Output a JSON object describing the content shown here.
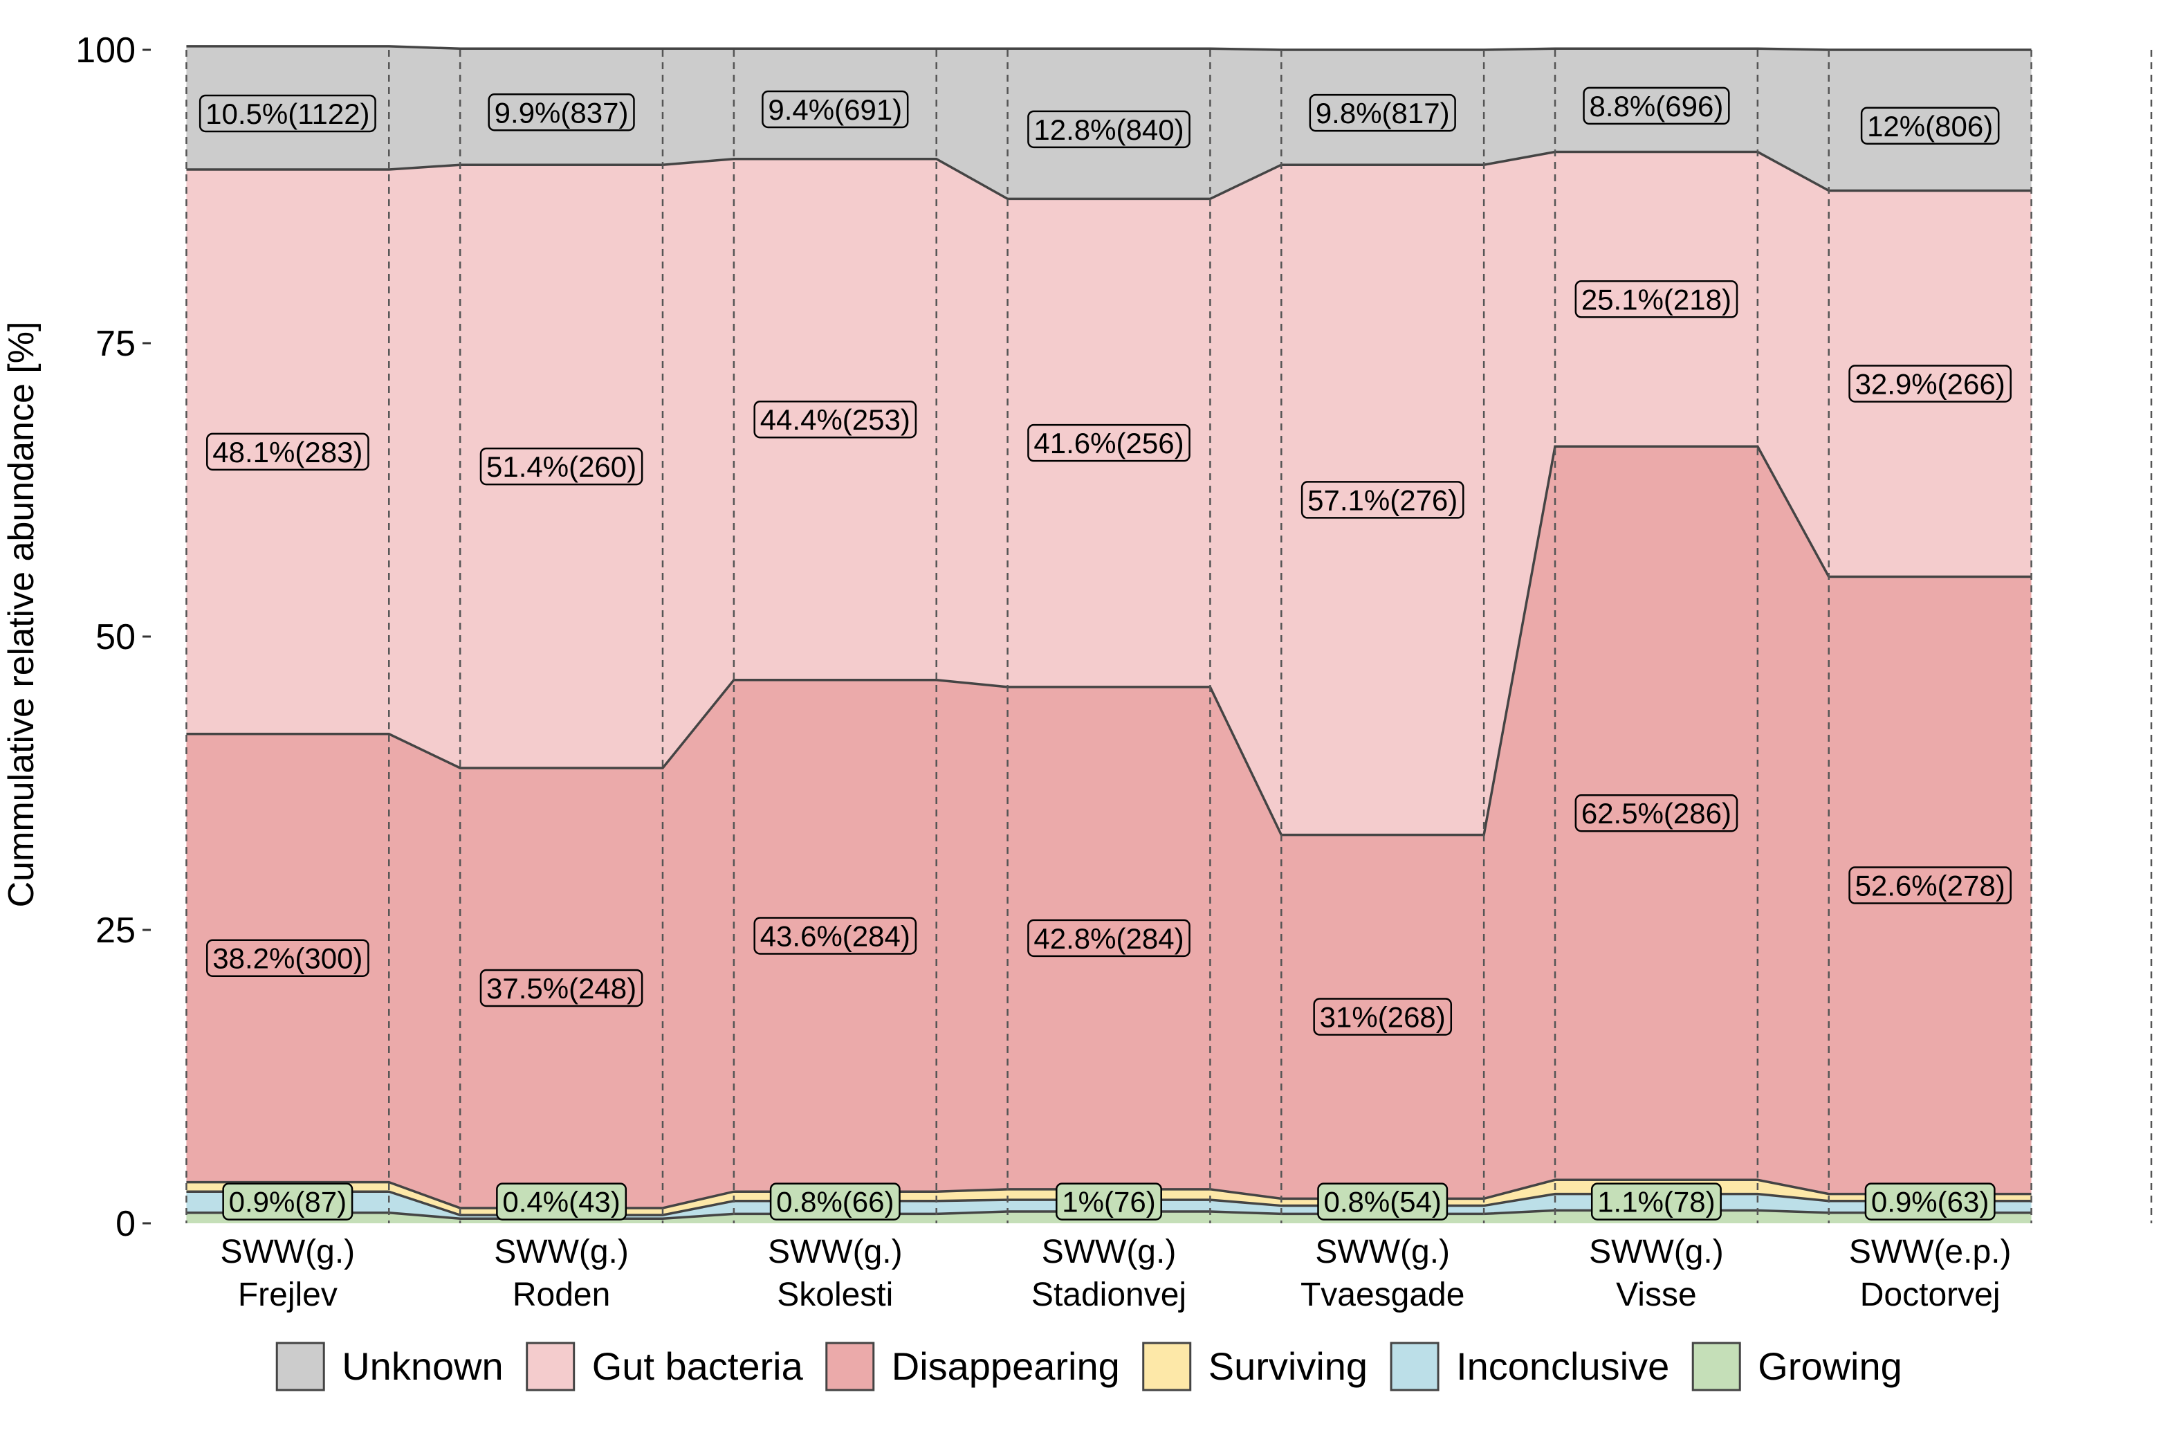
{
  "chart_data": {
    "type": "area",
    "stacked": true,
    "title": "",
    "xlabel": "",
    "ylabel": "Cummulative relative abundance [%]",
    "ylim": [
      0,
      100
    ],
    "yticks": [
      0,
      25,
      50,
      75,
      100
    ],
    "grid": false,
    "legend_position": "bottom",
    "categories": [
      [
        "SWW(g.)",
        "Frejlev"
      ],
      [
        "SWW(g.)",
        "Roden"
      ],
      [
        "SWW(g.)",
        "Skolesti"
      ],
      [
        "SWW(g.)",
        "Stadionvej"
      ],
      [
        "SWW(g.)",
        "Tvaesgade"
      ],
      [
        "SWW(g.)",
        "Visse"
      ],
      [
        "SWW(e.p.)",
        "Doctorvej"
      ]
    ],
    "series": [
      {
        "name": "Growing",
        "color": "#c5dfb8",
        "values": [
          0.9,
          0.4,
          0.8,
          1.0,
          0.8,
          1.1,
          0.9
        ],
        "labels": [
          "0.9%(87)",
          "0.4%(43)",
          "0.8%(66)",
          "1%(76)",
          "0.8%(54)",
          "1.1%(78)",
          "0.9%(63)"
        ]
      },
      {
        "name": "Inconclusive",
        "color": "#bcdfe8",
        "values": [
          1.8,
          0.3,
          1.1,
          1.0,
          0.7,
          1.4,
          1.0
        ],
        "labels": []
      },
      {
        "name": "Surviving",
        "color": "#fde8a8",
        "values": [
          0.8,
          0.6,
          0.8,
          0.9,
          0.6,
          1.2,
          0.6
        ],
        "labels": []
      },
      {
        "name": "Disappearing",
        "color": "#ebaaaa",
        "values": [
          38.2,
          37.5,
          43.6,
          42.8,
          31.0,
          62.5,
          52.6
        ],
        "labels": [
          "38.2%(300)",
          "37.5%(248)",
          "43.6%(284)",
          "42.8%(284)",
          "31%(268)",
          "62.5%(286)",
          "52.6%(278)"
        ]
      },
      {
        "name": "Gut bacteria",
        "color": "#f4cccd",
        "values": [
          48.1,
          51.4,
          44.4,
          41.6,
          57.1,
          25.1,
          32.9
        ],
        "labels": [
          "48.1%(283)",
          "51.4%(260)",
          "44.4%(253)",
          "41.6%(256)",
          "57.1%(276)",
          "25.1%(218)",
          "32.9%(266)"
        ]
      },
      {
        "name": "Unknown",
        "color": "#cccccc",
        "values": [
          10.5,
          9.9,
          9.4,
          12.8,
          9.8,
          8.8,
          12.0
        ],
        "labels": [
          "10.5%(1122)",
          "9.9%(837)",
          "9.4%(691)",
          "12.8%(840)",
          "9.8%(817)",
          "8.8%(696)",
          "12%(806)"
        ]
      }
    ],
    "legend": [
      "Unknown",
      "Gut bacteria",
      "Disappearing",
      "Surviving",
      "Inconclusive",
      "Growing"
    ]
  }
}
